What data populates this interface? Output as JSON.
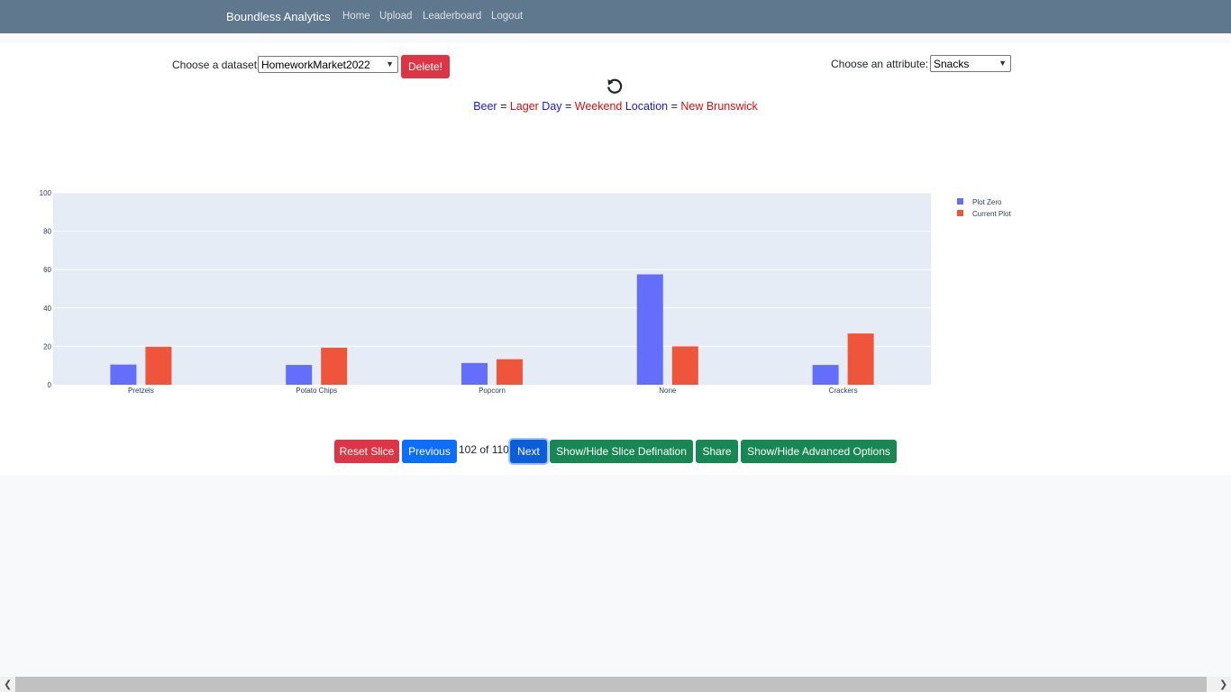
{
  "navbar": {
    "brand": "Boundless Analytics",
    "links": [
      "Home",
      "Upload",
      "Leaderboard",
      "Logout"
    ]
  },
  "controls": {
    "dataset_label": "Choose a dataset:",
    "dataset_value": "HomeworkMarket2022",
    "delete_label": "Delete!",
    "attribute_label": "Choose an attribute:",
    "attribute_value": "Snacks"
  },
  "slice": {
    "parts": [
      {
        "text": "Beer",
        "color": "#1a1adb"
      },
      {
        "text": " = ",
        "color": "#212529"
      },
      {
        "text": "Lager",
        "color": "#d01010"
      },
      {
        "text": " Day",
        "color": "#1a1adb"
      },
      {
        "text": " = ",
        "color": "#212529"
      },
      {
        "text": "Weekend",
        "color": "#d01010"
      },
      {
        "text": " Location",
        "color": "#1a1adb"
      },
      {
        "text": " = ",
        "color": "#212529"
      },
      {
        "text": "New Brunswick",
        "color": "#d01010"
      }
    ]
  },
  "chart_data": {
    "type": "bar",
    "categories": [
      "Pretzels",
      "Potato Chips",
      "Popcorn",
      "None",
      "Crackers"
    ],
    "series": [
      {
        "name": "Plot Zero",
        "color": "#636efa",
        "values": [
          10.5,
          10.3,
          11.3,
          57.5,
          10.3
        ]
      },
      {
        "name": "Current Plot",
        "color": "#ef553b",
        "values": [
          19.8,
          19.3,
          13.3,
          20.0,
          26.7
        ]
      }
    ],
    "ylim": [
      0,
      100
    ],
    "yticks": [
      0,
      20,
      40,
      60,
      80,
      100
    ],
    "grid": true,
    "legend_position": "top-right"
  },
  "footer": {
    "reset_label": "Reset Slice",
    "previous_label": "Previous",
    "counter": "102 of 110",
    "next_label": "Next",
    "slice_def_label": "Show/Hide Slice Defination",
    "share_label": "Share",
    "advanced_label": "Show/Hide Advanced Options"
  }
}
